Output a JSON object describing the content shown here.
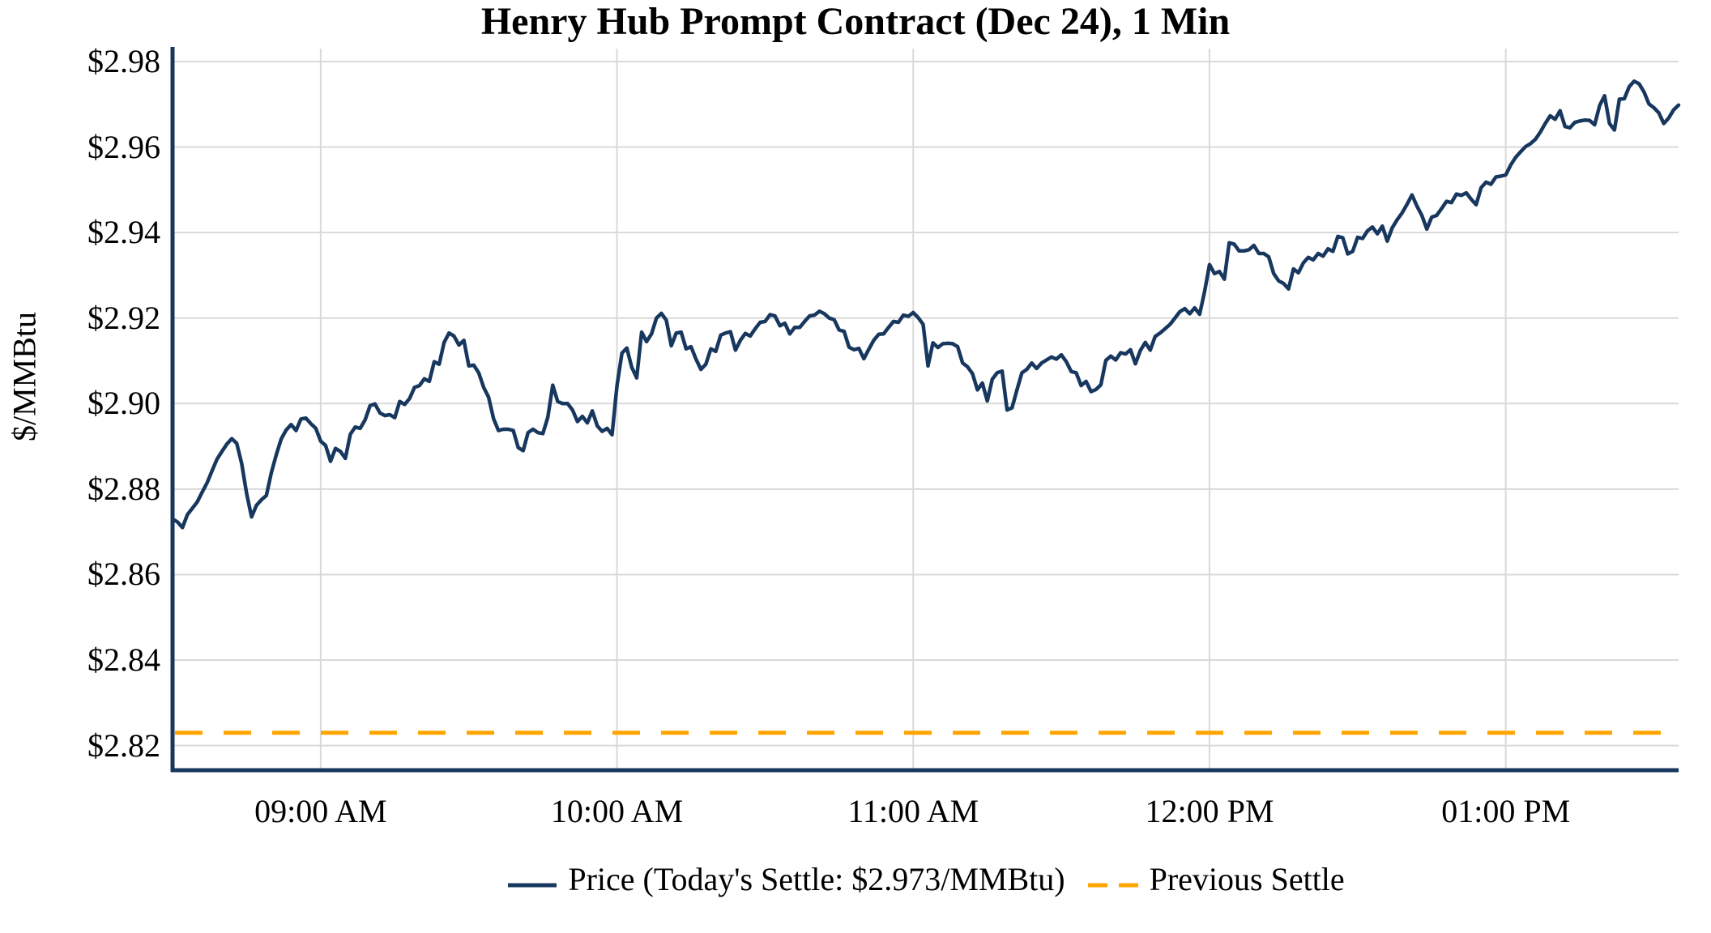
{
  "title": "Henry Hub Prompt Contract (Dec 24), 1 Min",
  "legend": {
    "price_label": "Price (Today's Settle: $2.973/MMBtu)",
    "previous_settle_label": "Previous Settle"
  },
  "chart_data": {
    "type": "line",
    "title": "Henry Hub Prompt Contract (Dec 24), 1 Min",
    "xlabel": "",
    "ylabel": "$/MMBtu",
    "x_start": "08:30 AM",
    "x_end": "01:35 PM",
    "x_interval": "1 min",
    "x_total_minutes": 305,
    "x_tick_labels": [
      "09:00 AM",
      "10:00 AM",
      "11:00 AM",
      "12:00 PM",
      "01:00 PM"
    ],
    "x_tick_minutes_from_start": [
      30,
      90,
      150,
      210,
      270
    ],
    "y_tick_labels": [
      "$2.98",
      "$2.96",
      "$2.94",
      "$2.92",
      "$2.90",
      "$2.88",
      "$2.86",
      "$2.84",
      "$2.82"
    ],
    "y_tick_values": [
      2.98,
      2.96,
      2.94,
      2.92,
      2.9,
      2.88,
      2.86,
      2.84,
      2.82
    ],
    "ylim": [
      2.8145,
      2.9831
    ],
    "grid": true,
    "legend_position": "bottom",
    "todays_settle": 2.973,
    "previous_settle": 2.823,
    "colors": {
      "price": "#17375E",
      "previous_settle": "#FFA500",
      "grid": "#D9D9D9",
      "axis": "#17375E"
    },
    "series": [
      {
        "name": "Price (Today's Settle: $2.973/MMBtu)",
        "type": "line",
        "style": "solid",
        "color": "#17375E",
        "values": [
          2.873,
          2.8723,
          2.871,
          2.874,
          2.8755,
          2.877,
          2.8793,
          2.8815,
          2.8843,
          2.887,
          2.8888,
          2.8905,
          2.8918,
          2.8907,
          2.886,
          2.879,
          2.8735,
          2.8762,
          2.8775,
          2.8785,
          2.8838,
          2.888,
          2.8917,
          2.8938,
          2.8951,
          2.8937,
          2.8964,
          2.8966,
          2.8953,
          2.8942,
          2.8912,
          2.8902,
          2.8865,
          2.8895,
          2.8888,
          2.8872,
          2.8928,
          2.8945,
          2.8942,
          2.8962,
          2.8995,
          2.8999,
          2.8978,
          2.8972,
          2.8974,
          2.8967,
          2.9005,
          2.8998,
          2.9012,
          2.9038,
          2.9042,
          2.9058,
          2.9052,
          2.9098,
          2.9092,
          2.9143,
          2.9165,
          2.9158,
          2.9137,
          2.9148,
          2.9088,
          2.909,
          2.9072,
          2.9038,
          2.9015,
          2.8965,
          2.8937,
          2.894,
          2.894,
          2.8937,
          2.8897,
          2.889,
          2.8932,
          2.894,
          2.8932,
          2.893,
          2.8968,
          2.9043,
          2.9005,
          2.9,
          2.9,
          2.8985,
          2.8958,
          2.897,
          2.8955,
          2.8983,
          2.8948,
          2.8935,
          2.8942,
          2.8927,
          2.9042,
          2.9118,
          2.913,
          2.9085,
          2.906,
          2.9167,
          2.9145,
          2.9163,
          2.92,
          2.9211,
          2.9195,
          2.9135,
          2.9165,
          2.9167,
          2.9128,
          2.9133,
          2.9104,
          2.908,
          2.9092,
          2.9128,
          2.9122,
          2.916,
          2.9165,
          2.9168,
          2.9125,
          2.9148,
          2.9164,
          2.9158,
          2.9175,
          2.919,
          2.9192,
          2.9208,
          2.9205,
          2.9182,
          2.9188,
          2.9163,
          2.9178,
          2.9178,
          2.9192,
          2.9205,
          2.9207,
          2.9216,
          2.921,
          2.92,
          2.9196,
          2.9172,
          2.9169,
          2.9132,
          2.9126,
          2.9129,
          2.9105,
          2.9127,
          2.9148,
          2.9162,
          2.9163,
          2.9178,
          2.9192,
          2.919,
          2.9207,
          2.9204,
          2.9213,
          2.9201,
          2.9185,
          2.9088,
          2.9142,
          2.9131,
          2.914,
          2.9141,
          2.914,
          2.9133,
          2.9095,
          2.9086,
          2.907,
          2.9032,
          2.9048,
          2.9006,
          2.9057,
          2.9072,
          2.9076,
          2.8985,
          2.899,
          2.9032,
          2.9072,
          2.908,
          2.9095,
          2.9082,
          2.9095,
          2.9102,
          2.9109,
          2.9104,
          2.9114,
          2.9098,
          2.9075,
          2.9072,
          2.9042,
          2.9052,
          2.9028,
          2.9033,
          2.9044,
          2.9101,
          2.9111,
          2.9102,
          2.9119,
          2.9116,
          2.9126,
          2.9093,
          2.9124,
          2.9143,
          2.9125,
          2.9157,
          2.9165,
          2.9175,
          2.9185,
          2.92,
          2.9215,
          2.9222,
          2.921,
          2.9224,
          2.9209,
          2.9262,
          2.9325,
          2.9304,
          2.9309,
          2.9291,
          2.9376,
          2.9373,
          2.9357,
          2.9357,
          2.936,
          2.937,
          2.9351,
          2.9351,
          2.9343,
          2.9304,
          2.9287,
          2.9281,
          2.9268,
          2.9315,
          2.9306,
          2.9329,
          2.9342,
          2.9336,
          2.9351,
          2.9345,
          2.9362,
          2.9356,
          2.9391,
          2.9388,
          2.935,
          2.9356,
          2.9389,
          2.9386,
          2.9404,
          2.9413,
          2.9397,
          2.9415,
          2.938,
          2.9411,
          2.943,
          2.9446,
          2.9466,
          2.9488,
          2.9462,
          2.944,
          2.9408,
          2.9436,
          2.944,
          2.9456,
          2.9473,
          2.947,
          2.949,
          2.9487,
          2.9493,
          2.9478,
          2.9465,
          2.9505,
          2.9518,
          2.9513,
          2.953,
          2.9532,
          2.9535,
          2.9558,
          2.9576,
          2.9589,
          2.9601,
          2.9608,
          2.9618,
          2.9635,
          2.9655,
          2.9673,
          2.9665,
          2.9685,
          2.9648,
          2.9645,
          2.9658,
          2.9661,
          2.9663,
          2.9662,
          2.9652,
          2.9697,
          2.972,
          2.9655,
          2.964,
          2.9712,
          2.9713,
          2.9741,
          2.9754,
          2.9748,
          2.9729,
          2.9701,
          2.9692,
          2.968,
          2.9655,
          2.9668,
          2.9687,
          2.9698
        ]
      },
      {
        "name": "Previous Settle",
        "type": "hline",
        "style": "dashed",
        "color": "#FFA500",
        "value": 2.823
      }
    ]
  }
}
